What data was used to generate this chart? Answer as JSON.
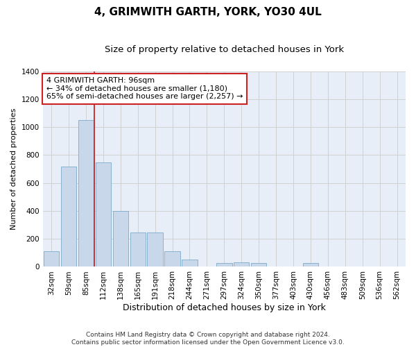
{
  "title": "4, GRIMWITH GARTH, YORK, YO30 4UL",
  "subtitle": "Size of property relative to detached houses in York",
  "xlabel": "Distribution of detached houses by size in York",
  "ylabel": "Number of detached properties",
  "categories": [
    "32sqm",
    "59sqm",
    "85sqm",
    "112sqm",
    "138sqm",
    "165sqm",
    "191sqm",
    "218sqm",
    "244sqm",
    "271sqm",
    "297sqm",
    "324sqm",
    "350sqm",
    "377sqm",
    "403sqm",
    "430sqm",
    "456sqm",
    "483sqm",
    "509sqm",
    "536sqm",
    "562sqm"
  ],
  "values": [
    110,
    720,
    1050,
    750,
    400,
    245,
    245,
    110,
    50,
    0,
    25,
    30,
    25,
    0,
    0,
    25,
    0,
    0,
    0,
    0,
    0
  ],
  "bar_color": "#c8d8ea",
  "bar_edge_color": "#7aaac8",
  "vline_color": "#cc2222",
  "annotation_text": "4 GRIMWITH GARTH: 96sqm\n← 34% of detached houses are smaller (1,180)\n65% of semi-detached houses are larger (2,257) →",
  "annotation_box_color": "#ffffff",
  "annotation_edge_color": "#cc2222",
  "ylim": [
    0,
    1400
  ],
  "yticks": [
    0,
    200,
    400,
    600,
    800,
    1000,
    1200,
    1400
  ],
  "grid_color": "#cccccc",
  "background_color": "#e8eef8",
  "footer_line1": "Contains HM Land Registry data © Crown copyright and database right 2024.",
  "footer_line2": "Contains public sector information licensed under the Open Government Licence v3.0.",
  "title_fontsize": 11,
  "subtitle_fontsize": 9.5,
  "xlabel_fontsize": 9,
  "ylabel_fontsize": 8,
  "tick_fontsize": 7.5,
  "annotation_fontsize": 8,
  "footer_fontsize": 6.5,
  "vline_x_index": 2.47
}
